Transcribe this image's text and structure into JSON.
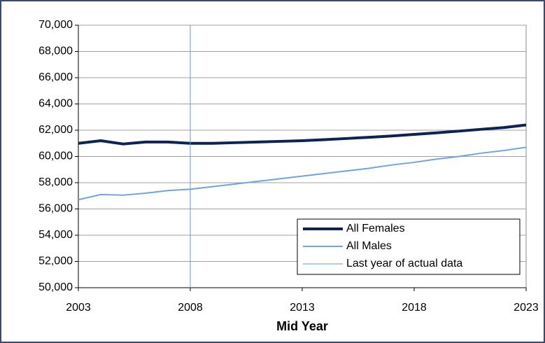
{
  "chart_data": {
    "type": "line",
    "x_label": "Mid Year",
    "x": [
      2003,
      2004,
      2005,
      2006,
      2007,
      2008,
      2009,
      2010,
      2011,
      2012,
      2013,
      2014,
      2015,
      2016,
      2017,
      2018,
      2019,
      2020,
      2021,
      2022,
      2023
    ],
    "series": [
      {
        "name": "All Females",
        "color": "#0d2355",
        "width": 4,
        "values": [
          61000,
          61200,
          60950,
          61100,
          61100,
          61000,
          61000,
          61050,
          61100,
          61150,
          61200,
          61280,
          61370,
          61460,
          61560,
          61680,
          61800,
          61930,
          62070,
          62200,
          62400
        ]
      },
      {
        "name": "All Males",
        "color": "#6fa3e0",
        "width": 2,
        "values": [
          56700,
          57100,
          57050,
          57200,
          57400,
          57500,
          57700,
          57900,
          58100,
          58300,
          58500,
          58700,
          58900,
          59100,
          59350,
          59550,
          59800,
          60000,
          60250,
          60450,
          60700
        ]
      },
      {
        "name": "Last year of actual data",
        "color": "#5b9bd5",
        "width": 1,
        "x": [
          2008,
          2008
        ],
        "values": [
          50000,
          70000
        ]
      }
    ],
    "xlim": [
      2003,
      2023
    ],
    "xticks": [
      2003,
      2008,
      2013,
      2018,
      2023
    ],
    "ylim": [
      50000,
      70000
    ],
    "yticks": [
      {
        "value": 50000,
        "label": "50,000"
      },
      {
        "value": 52000,
        "label": "52,000"
      },
      {
        "value": 54000,
        "label": "54,000"
      },
      {
        "value": 56000,
        "label": "56,000"
      },
      {
        "value": 58000,
        "label": "58,000"
      },
      {
        "value": 60000,
        "label": "60,000"
      },
      {
        "value": 62000,
        "label": "62,000"
      },
      {
        "value": 64000,
        "label": "64,000"
      },
      {
        "value": 66000,
        "label": "66,000"
      },
      {
        "value": 68000,
        "label": "68,000"
      },
      {
        "value": 70000,
        "label": "70,000"
      }
    ],
    "grid": true,
    "legend": "lower-right"
  }
}
